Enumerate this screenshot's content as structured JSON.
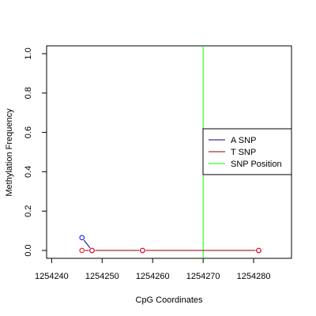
{
  "chart_data": {
    "type": "line",
    "title": "",
    "xlabel": "CpG Coordinates",
    "ylabel": "Methylation Frequency",
    "xlim": [
      1254239,
      1254287.5
    ],
    "ylim": [
      -0.04,
      1.04
    ],
    "xticks": [
      1254240,
      1254250,
      1254260,
      1254270,
      1254280
    ],
    "xtick_labels": [
      "1254240",
      "1254250",
      "1254260",
      "1254270",
      "1254280"
    ],
    "yticks": [
      0.0,
      0.2,
      0.4,
      0.6,
      0.8,
      1.0
    ],
    "ytick_labels": [
      "0.0",
      "0.2",
      "0.4",
      "0.6",
      "0.8",
      "1.0"
    ],
    "grid": false,
    "legend_position": "right",
    "series": [
      {
        "name": "A SNP",
        "color": "#00008b",
        "marker_color": "#0000ff",
        "points": [
          {
            "x": 1254246,
            "y": 0.065
          },
          {
            "x": 1254248,
            "y": 0.0
          },
          {
            "x": 1254258,
            "y": 0.0
          },
          {
            "x": 1254281,
            "y": 0.0
          }
        ]
      },
      {
        "name": "T SNP",
        "color": "#8b0000",
        "marker_color": "#ff0000",
        "points": [
          {
            "x": 1254246,
            "y": 0.0
          },
          {
            "x": 1254248,
            "y": 0.0
          },
          {
            "x": 1254258,
            "y": 0.0
          },
          {
            "x": 1254281,
            "y": 0.0
          }
        ]
      }
    ],
    "snp_position": {
      "name": "SNP Position",
      "x": 1254270,
      "color": "#00ff00"
    }
  }
}
